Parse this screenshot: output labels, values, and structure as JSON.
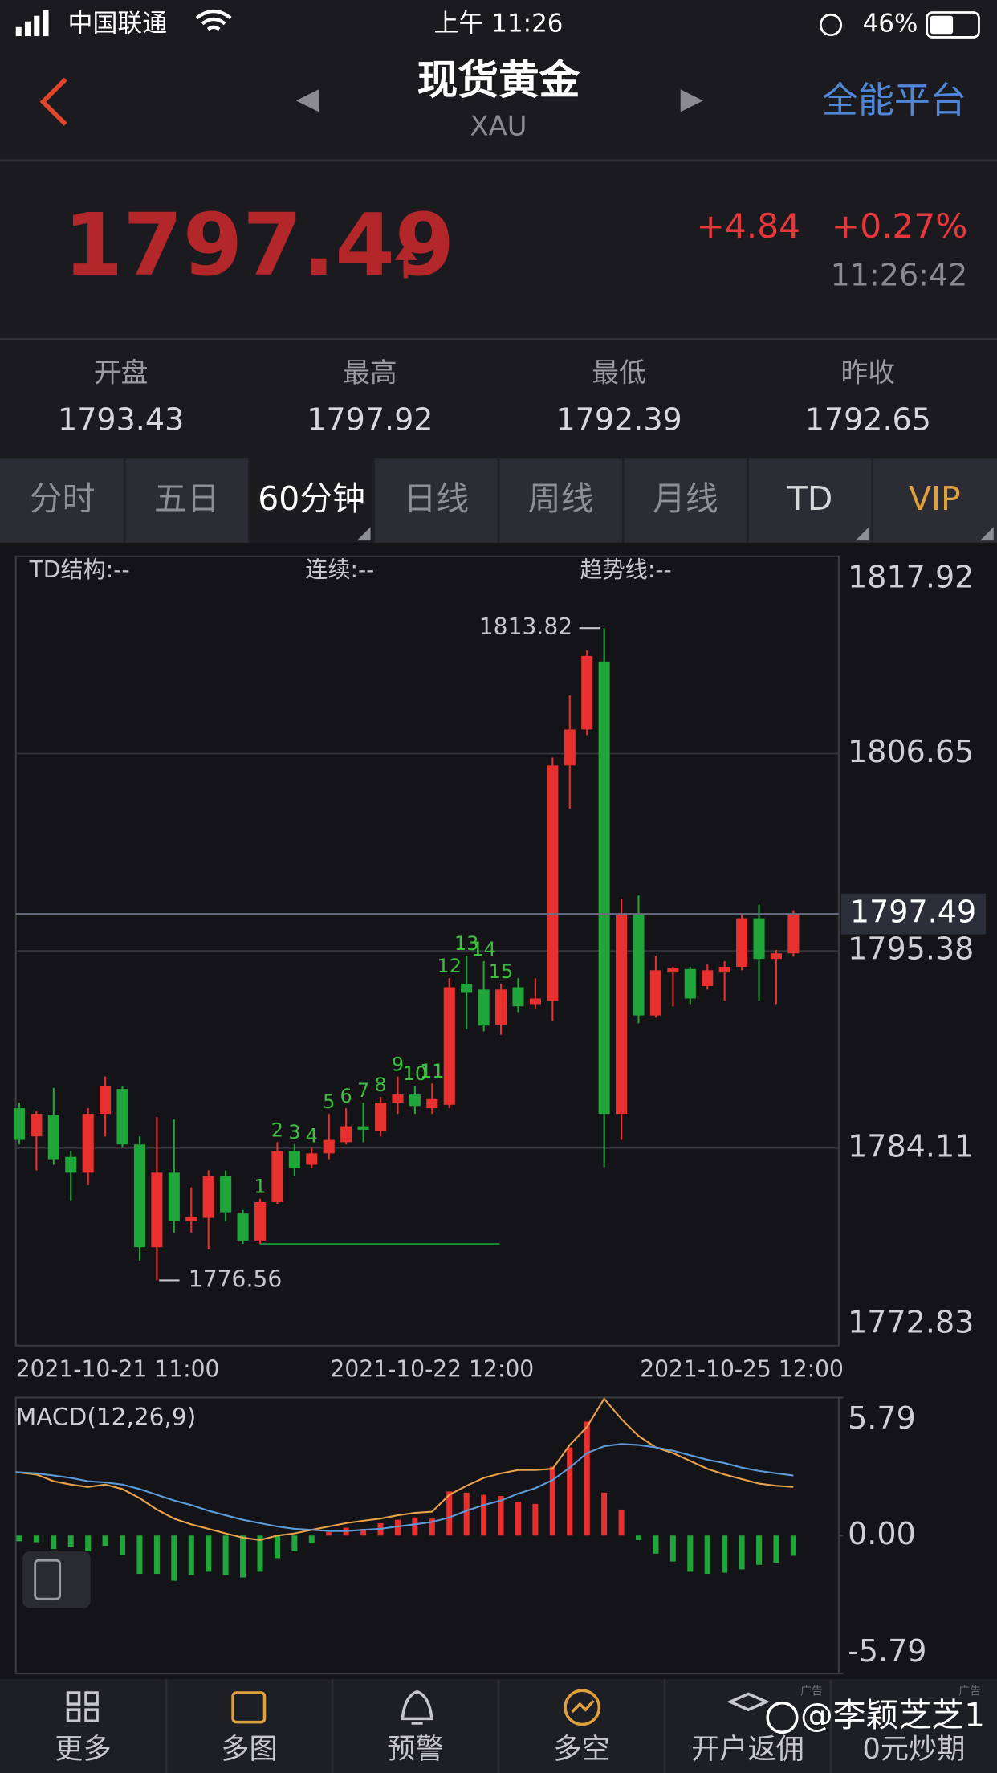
{
  "status": {
    "carrier": "中国联通",
    "time": "上午 11:26",
    "battery": "46%"
  },
  "header": {
    "title": "现货黄金",
    "subtitle": "XAU",
    "action": "全能平台"
  },
  "quote": {
    "price": 1797.49,
    "change": "+4.84",
    "change_pct": "+0.27%",
    "time": "11:26:42"
  },
  "stats": [
    {
      "label": "开盘",
      "value": 1793.43
    },
    {
      "label": "最高",
      "value": 1797.92
    },
    {
      "label": "最低",
      "value": 1792.39
    },
    {
      "label": "昨收",
      "value": 1792.65
    }
  ],
  "tabs": {
    "items": [
      "分时",
      "五日",
      "60分钟",
      "日线",
      "周线",
      "月线",
      "TD",
      "VIP"
    ],
    "active": 2
  },
  "chart_data": [
    {
      "type": "candlestick",
      "indicators": [
        "TD结构:--",
        "连续:--",
        "趋势线:--"
      ],
      "up_color": "#e8302f",
      "down_color": "#1fa53a",
      "td_color": "#3cbf3c",
      "categories": [
        "2021-10-21 11:00",
        null,
        null,
        null,
        null,
        null,
        null,
        null,
        null,
        null,
        null,
        null,
        null,
        null,
        null,
        null,
        null,
        null,
        null,
        null,
        null,
        null,
        null,
        null,
        "2021-10-22 12:00",
        null,
        null,
        null,
        null,
        null,
        null,
        null,
        null,
        null,
        null,
        null,
        null,
        null,
        null,
        null,
        null,
        null,
        "2021-10-25 12:00",
        null,
        null,
        null
      ],
      "ohlc": [
        [
          1786.39,
          1786.71,
          1784.32,
          1784.58
        ],
        [
          1784.78,
          1786.26,
          1782.84,
          1786.07
        ],
        [
          1786.0,
          1787.55,
          1783.16,
          1783.48
        ],
        [
          1783.61,
          1783.94,
          1781.09,
          1782.71
        ],
        [
          1782.71,
          1786.39,
          1782.0,
          1786.07
        ],
        [
          1786.07,
          1788.2,
          1784.78,
          1787.68
        ],
        [
          1787.49,
          1787.68,
          1784.13,
          1784.32
        ],
        [
          1784.32,
          1784.78,
          1777.67,
          1778.45
        ],
        [
          1778.45,
          1785.88,
          1776.56,
          1782.71
        ],
        [
          1782.71,
          1785.75,
          1779.29,
          1779.93
        ],
        [
          1779.93,
          1781.87,
          1779.29,
          1780.19
        ],
        [
          1780.13,
          1782.84,
          1778.32,
          1782.52
        ],
        [
          1782.52,
          1782.84,
          1779.93,
          1780.45
        ],
        [
          1780.38,
          1780.58,
          1778.64,
          1778.83
        ],
        [
          1778.83,
          1781.22,
          1778.64,
          1781.03
        ],
        [
          1781.03,
          1784.45,
          1780.9,
          1783.94
        ],
        [
          1783.94,
          1784.32,
          1782.52,
          1782.97
        ],
        [
          1783.16,
          1784.13,
          1782.97,
          1783.81
        ],
        [
          1783.81,
          1786.07,
          1783.48,
          1784.58
        ],
        [
          1784.45,
          1786.39,
          1784.32,
          1785.36
        ],
        [
          1785.36,
          1786.71,
          1784.45,
          1785.16
        ],
        [
          1785.1,
          1787.04,
          1784.78,
          1786.71
        ],
        [
          1786.71,
          1788.2,
          1786.07,
          1787.17
        ],
        [
          1787.17,
          1787.68,
          1786.07,
          1786.52
        ],
        [
          1786.39,
          1787.81,
          1786.07,
          1786.91
        ],
        [
          1786.59,
          1793.82,
          1786.39,
          1793.3
        ],
        [
          1793.5,
          1795.11,
          1790.91,
          1792.98
        ],
        [
          1793.17,
          1794.79,
          1790.78,
          1791.11
        ],
        [
          1791.17,
          1793.5,
          1790.59,
          1793.17
        ],
        [
          1793.3,
          1793.82,
          1791.88,
          1792.21
        ],
        [
          1792.34,
          1793.82,
          1792.08,
          1792.66
        ],
        [
          1792.53,
          1806.42,
          1791.37,
          1805.97
        ],
        [
          1805.97,
          1809.97,
          1803.51,
          1808.03
        ],
        [
          1808.03,
          1812.55,
          1807.71,
          1812.23
        ],
        [
          1811.91,
          1813.82,
          1783.03,
          1786.07
        ],
        [
          1786.07,
          1798.34,
          1784.58,
          1797.5
        ],
        [
          1797.5,
          1798.54,
          1791.24,
          1791.69
        ],
        [
          1791.69,
          1795.11,
          1791.56,
          1794.27
        ],
        [
          1794.14,
          1794.47,
          1792.21,
          1794.4
        ],
        [
          1794.34,
          1794.47,
          1792.34,
          1792.66
        ],
        [
          1793.37,
          1794.6,
          1793.17,
          1794.27
        ],
        [
          1794.14,
          1794.79,
          1792.53,
          1794.47
        ],
        [
          1794.47,
          1797.5,
          1794.27,
          1797.24
        ],
        [
          1797.24,
          1798.02,
          1792.53,
          1794.92
        ],
        [
          1794.92,
          1795.44,
          1792.34,
          1795.24
        ],
        [
          1795.24,
          1797.7,
          1795.05,
          1797.49
        ]
      ],
      "td_counts": [
        null,
        null,
        null,
        null,
        null,
        null,
        null,
        null,
        null,
        null,
        null,
        null,
        null,
        null,
        1,
        2,
        3,
        4,
        5,
        6,
        7,
        8,
        9,
        10,
        11,
        12,
        13,
        14,
        15,
        null,
        null,
        null,
        null,
        null,
        null,
        null,
        null,
        null,
        null,
        null,
        null,
        null,
        null,
        null,
        null,
        null
      ],
      "ylim": [
        1772.83,
        1817.92
      ],
      "yticks": [
        1772.83,
        1784.11,
        1795.38,
        1806.65,
        1817.92
      ],
      "grid": true
    },
    {
      "type": "macd",
      "title": "MACD(12,26,9)",
      "bars": [
        -0.24,
        -0.28,
        -0.57,
        -0.47,
        -0.66,
        -0.43,
        -0.81,
        -1.61,
        -1.61,
        -1.9,
        -1.66,
        -1.52,
        -1.66,
        -1.76,
        -1.52,
        -0.95,
        -0.66,
        -0.33,
        0.14,
        0.33,
        0.28,
        0.52,
        0.66,
        0.76,
        0.71,
        1.85,
        1.8,
        1.71,
        1.66,
        1.42,
        1.33,
        2.89,
        3.7,
        4.78,
        1.8,
        1.09,
        -0.19,
        -0.76,
        -1.09,
        -1.52,
        -1.61,
        -1.56,
        -1.42,
        -1.23,
        -1.14,
        -0.85
      ],
      "up_color": "#e8302f",
      "down_color": "#1fa53a",
      "lines": [
        {
          "color": "#e9a24c",
          "values": [
            2.66,
            2.56,
            2.28,
            2.14,
            2.04,
            2.14,
            1.95,
            1.57,
            1.09,
            0.71,
            0.47,
            0.28,
            0.09,
            -0.09,
            -0.19,
            0.0,
            0.09,
            0.24,
            0.38,
            0.52,
            0.62,
            0.71,
            0.85,
            0.95,
            1.0,
            1.71,
            2.09,
            2.42,
            2.61,
            2.75,
            2.75,
            2.8,
            3.8,
            4.56,
            5.74,
            4.89,
            4.18,
            3.7,
            3.46,
            3.13,
            2.8,
            2.56,
            2.37,
            2.18,
            2.09,
            2.04
          ]
        },
        {
          "color": "#5d9ad8",
          "values": [
            2.66,
            2.61,
            2.52,
            2.42,
            2.28,
            2.23,
            2.14,
            1.95,
            1.71,
            1.47,
            1.28,
            1.04,
            0.85,
            0.66,
            0.52,
            0.38,
            0.28,
            0.24,
            0.19,
            0.19,
            0.24,
            0.28,
            0.38,
            0.47,
            0.57,
            0.76,
            1.04,
            1.28,
            1.47,
            1.76,
            1.99,
            2.33,
            2.85,
            3.46,
            3.75,
            3.84,
            3.8,
            3.7,
            3.56,
            3.37,
            3.18,
            3.04,
            2.85,
            2.71,
            2.61,
            2.52
          ]
        }
      ],
      "ylim": [
        -5.79,
        5.79
      ],
      "yticks": [
        -5.79,
        {
          "value": 0,
          "label": "0.00"
        },
        5.79
      ]
    }
  ],
  "nav": [
    "更多",
    "多图",
    "预警",
    "多空",
    "开户返佣",
    "0元炒期"
  ],
  "ad_tag": "广告",
  "watermark": "@李颖芝芝1"
}
